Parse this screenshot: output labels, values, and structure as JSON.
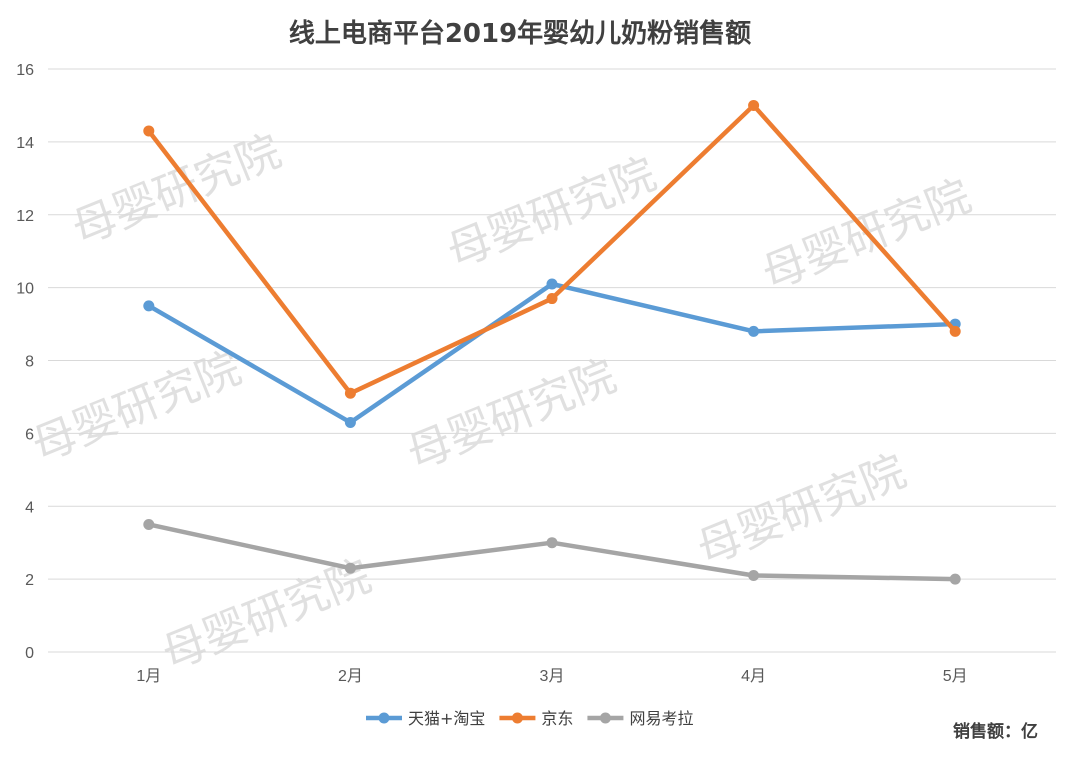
{
  "chart_data": {
    "type": "line",
    "title": "线上电商平台2019年婴幼儿奶粉销售额",
    "categories": [
      "1月",
      "2月",
      "3月",
      "4月",
      "5月"
    ],
    "ylim": [
      0,
      16
    ],
    "yticks": [
      "0",
      "2",
      "4",
      "6",
      "8",
      "10",
      "12",
      "14",
      "16"
    ],
    "grid": true,
    "legend_position": "bottom",
    "unit_label": "销售额：亿",
    "series": [
      {
        "name": "天猫+淘宝",
        "color": "#5b9bd5",
        "values": [
          9.5,
          6.3,
          10.1,
          8.8,
          9.0
        ]
      },
      {
        "name": "京东",
        "color": "#ed7d31",
        "values": [
          14.3,
          7.1,
          9.7,
          15.0,
          8.8
        ]
      },
      {
        "name": "网易考拉",
        "color": "#a5a5a5",
        "values": [
          3.5,
          2.3,
          3.0,
          2.1,
          2.0
        ]
      }
    ],
    "watermark": "母婴研究院"
  }
}
